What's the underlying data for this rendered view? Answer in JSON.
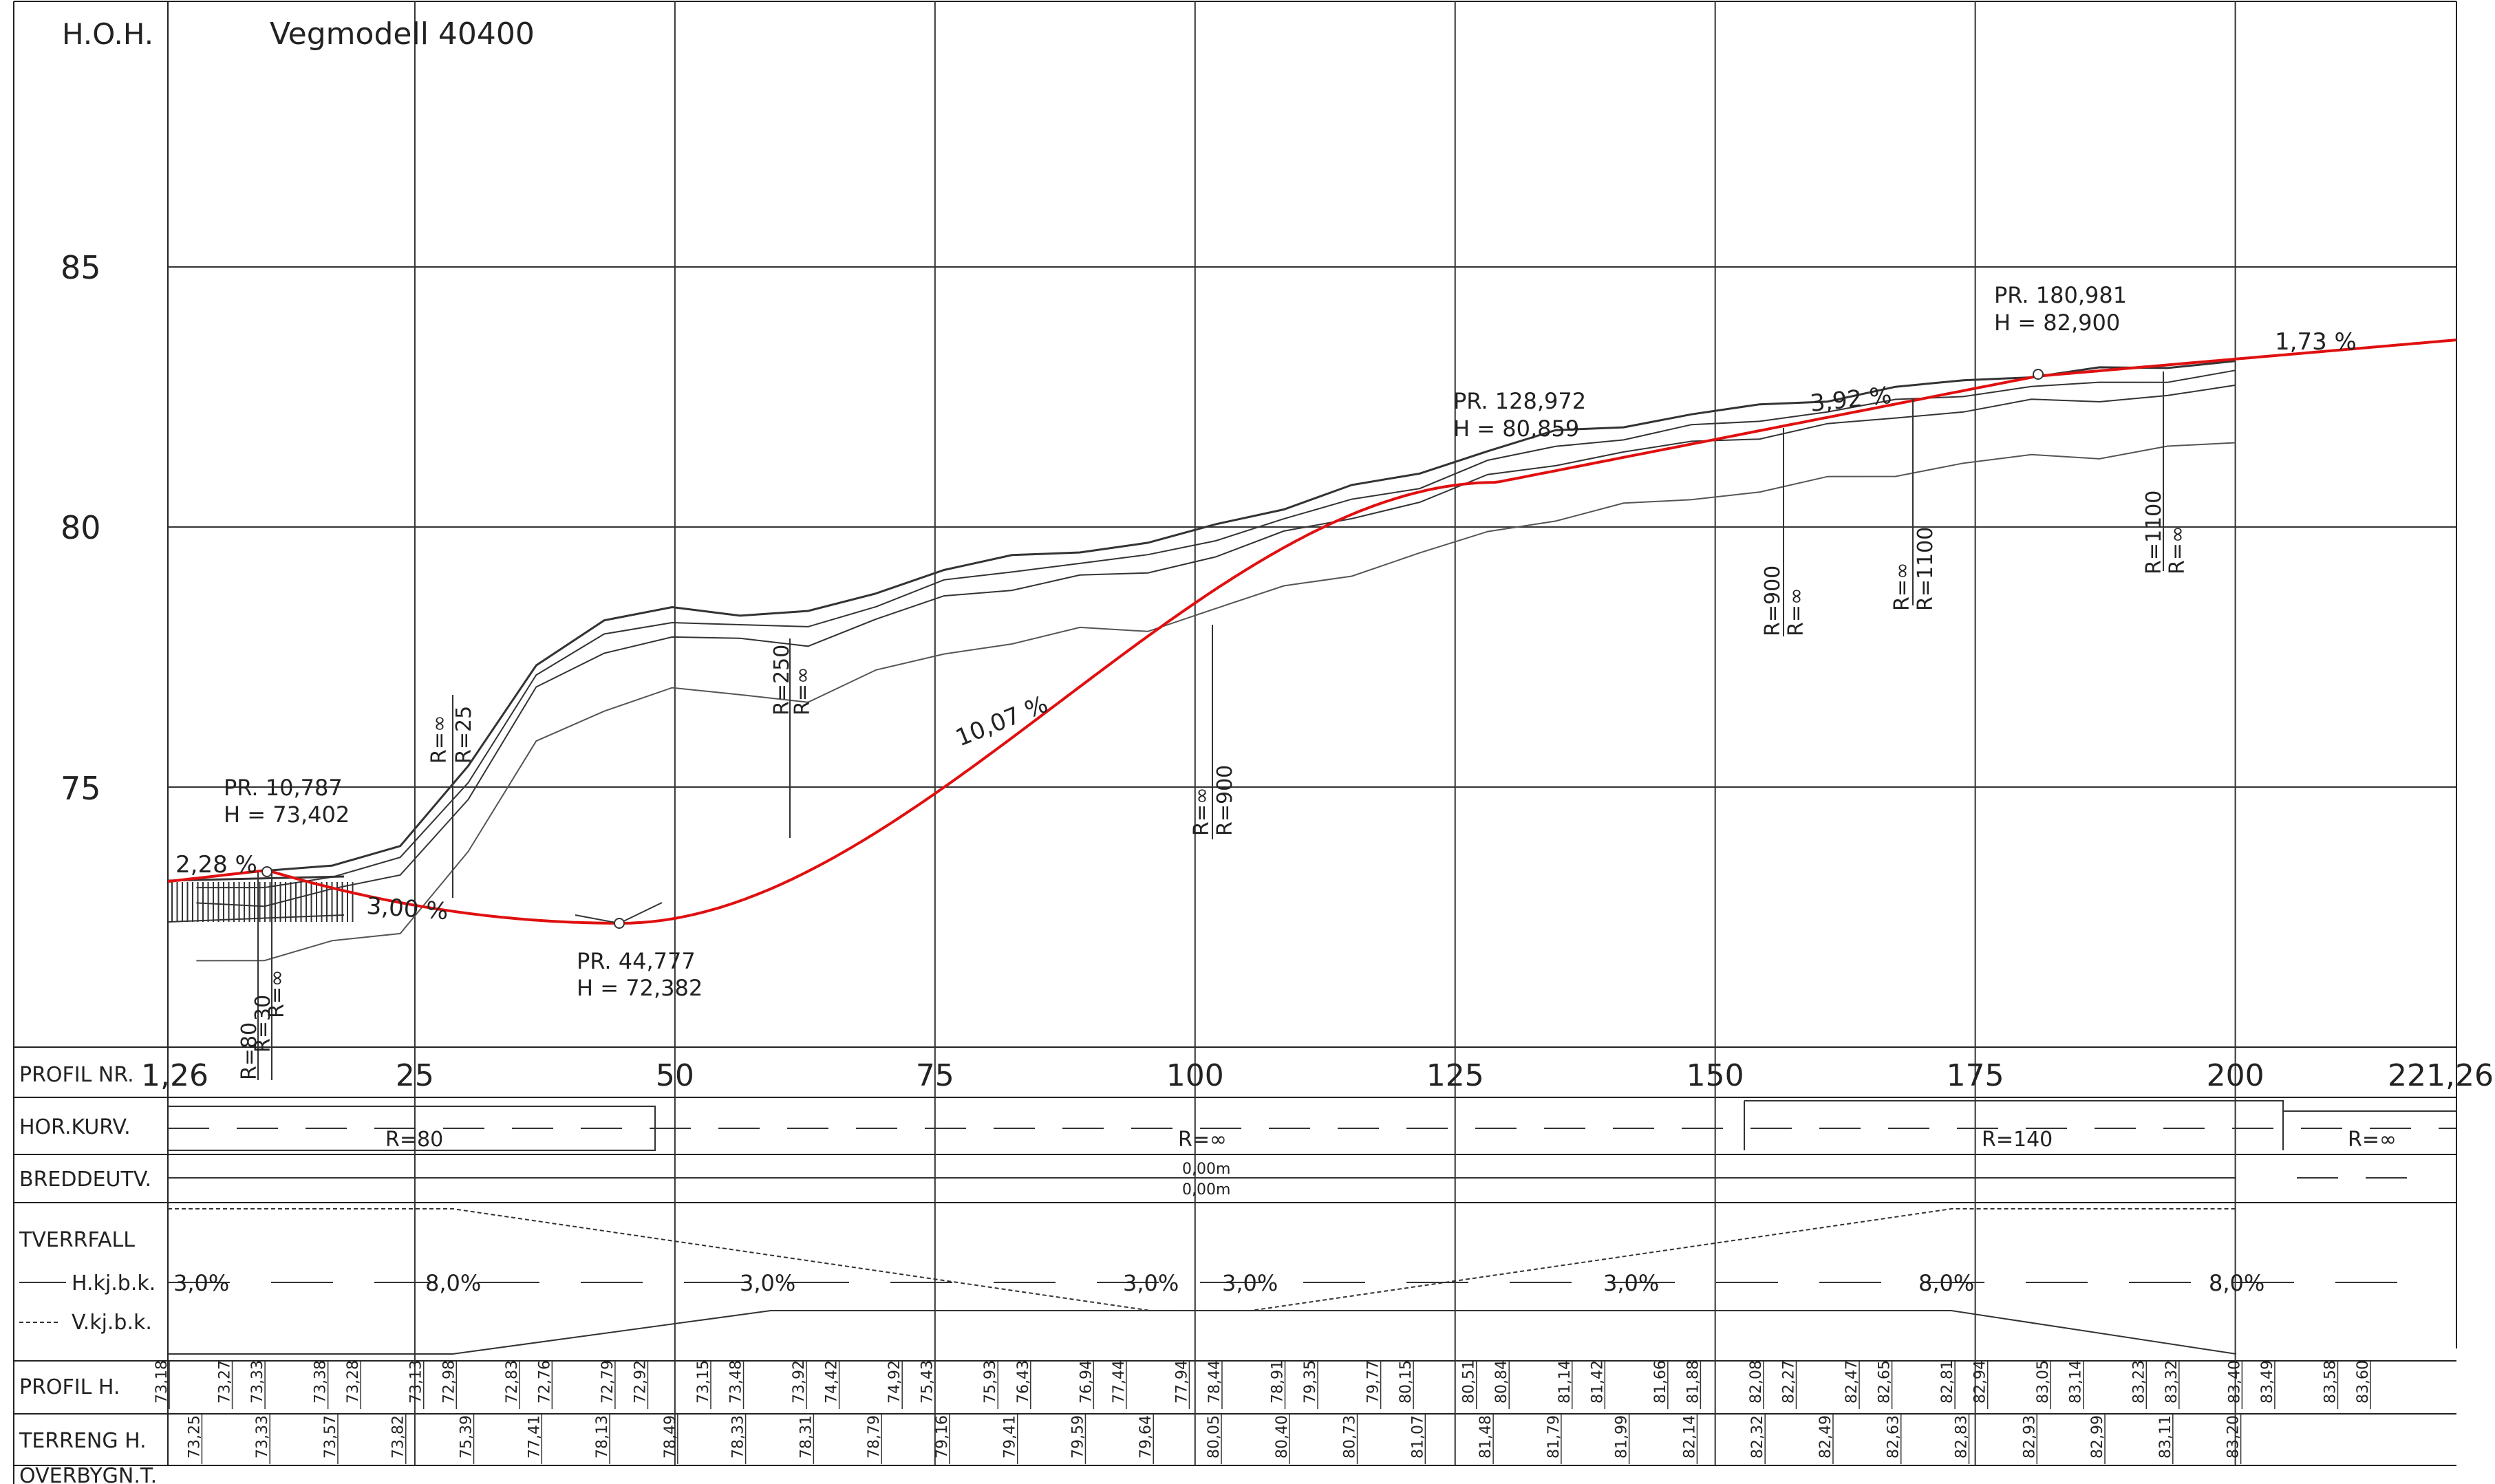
{
  "header": {
    "hoh_label": "H.O.H.",
    "title": "Vegmodell 40400"
  },
  "colors": {
    "design_line": "#e01010",
    "ink": "#222222",
    "terrain": "#333333"
  },
  "elevation_axis": {
    "ticks": [
      "85",
      "80",
      "75"
    ],
    "values": [
      85,
      80,
      75
    ],
    "range": [
      70,
      89
    ]
  },
  "chainage_axis": {
    "row_label": "PROFIL NR.",
    "ticks": [
      "1,26",
      "25",
      "50",
      "75",
      "100",
      "125",
      "150",
      "175",
      "200",
      "221,26"
    ],
    "values": [
      1.26,
      25,
      50,
      75,
      100,
      125,
      150,
      175,
      200,
      221.26
    ]
  },
  "annotations": {
    "pr1": {
      "line1": "PR. 10,787",
      "line2": "H = 73,402",
      "chainage": 10.787,
      "elevation": 73.402
    },
    "pr2": {
      "line1": "PR. 44,777",
      "line2": "H = 72,382",
      "chainage": 44.777,
      "elevation": 72.382
    },
    "pr3": {
      "line1": "PR. 128,972",
      "line2": "H = 80,859",
      "chainage": 128.972,
      "elevation": 80.859
    },
    "pr4": {
      "line1": "PR. 180,981",
      "line2": "H = 82,900",
      "chainage": 180.981,
      "elevation": 82.9
    },
    "grades": [
      "2,28 %",
      "3,00 %",
      "10,07 %",
      "3,92 %",
      "1,73 %"
    ],
    "radius_pairs": [
      {
        "a": "R=80",
        "b": "R=30",
        "c": "R=∞"
      },
      {
        "a": "R=∞",
        "b": "R=25"
      },
      {
        "a": "R=250",
        "b": "R=∞"
      },
      {
        "a": "R=∞",
        "b": "R=900"
      },
      {
        "a": "R=900",
        "b": "R=∞"
      },
      {
        "a": "R=∞",
        "b": "R=1100"
      },
      {
        "a": "R=1100",
        "b": "R=∞"
      }
    ]
  },
  "band": {
    "hor_kurv": {
      "label": "HOR.KURV.",
      "values": [
        "R=80",
        "R=∞",
        "R=140",
        "R=∞"
      ]
    },
    "breddeutv": {
      "label": "BREDDEUTV.",
      "v1": "0,00m",
      "v2": "0,00m"
    },
    "tverrfall": {
      "label": "TVERRFALL",
      "hkj_label": "H.kj.b.k.",
      "vkj_label": "V.kj.b.k.",
      "values": [
        "3,0%",
        "8,0%",
        "3,0%",
        "3,0%",
        "3,0%",
        "3,0%",
        "8,0%",
        "8,0%"
      ]
    },
    "profil_h": {
      "label": "PROFIL H.",
      "values": [
        "73,18",
        "73,27",
        "73,33",
        "73,38",
        "73,28",
        "73,13",
        "72,98",
        "72,83",
        "72,76",
        "72,79",
        "72,92",
        "73,15",
        "73,48",
        "73,92",
        "74,42",
        "74,92",
        "75,43",
        "75,93",
        "76,43",
        "76,94",
        "77,44",
        "77,94",
        "78,44",
        "78,91",
        "79,35",
        "79,77",
        "80,15",
        "80,51",
        "80,84",
        "81,14",
        "81,42",
        "81,66",
        "81,88",
        "82,08",
        "82,27",
        "82,47",
        "82,65",
        "82,81",
        "82,94",
        "83,05",
        "83,14",
        "83,23",
        "83,32",
        "83,40",
        "83,49",
        "83,58",
        "83,60"
      ]
    },
    "terreng_h": {
      "label": "TERRENG H.",
      "values": [
        "73,25",
        "73,33",
        "73,57",
        "73,82",
        "75,39",
        "77,41",
        "78,13",
        "78,49",
        "78,33",
        "78,31",
        "78,79",
        "79,16",
        "79,41",
        "79,59",
        "79,64",
        "80,05",
        "80,40",
        "80,73",
        "81,07",
        "81,48",
        "81,79",
        "81,99",
        "82,14",
        "82,32",
        "82,49",
        "82,63",
        "82,83",
        "82,93",
        "82,99",
        "83,11",
        "83,20"
      ]
    },
    "overbygn": {
      "label": "OVERBYGN.T."
    }
  }
}
